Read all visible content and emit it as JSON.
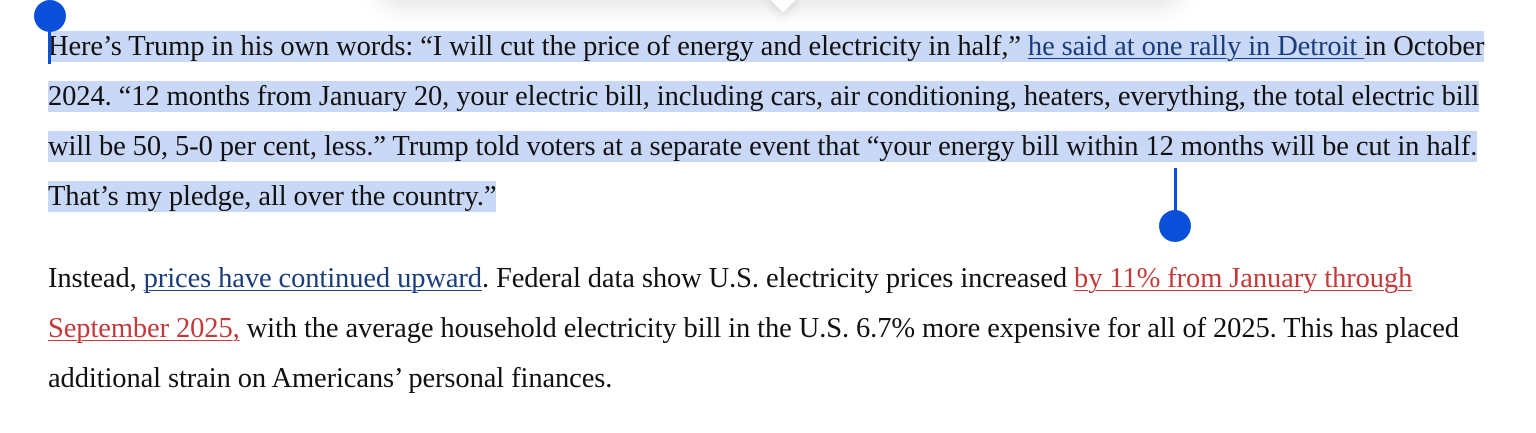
{
  "paragraph1": {
    "text_before_link": "Here’s Trump in his own words: “I will cut the price of energy and electricity in half,” ",
    "link": "he said at one rally in Detroit ",
    "text_after_link": "in October 2024. “12 months from January 20, your electric bill, including cars, air conditioning, heaters, everything, the total electric bill will be 50, 5-0 per cent, less.” Trump told voters at a separate event that “your energy bill within 12 months will be cut in half. That’s my pledge, all over the country.”"
  },
  "paragraph2": {
    "text_start": "Instead, ",
    "link1": "prices have continued upward",
    "text_mid": ". Federal data show U.S. electricity prices increased ",
    "link2": "by 11% from January through September 2025,",
    "text_end": " with the average household electricity bill in the U.S. 6.7% more expensive for all of 2025. This has placed additional strain on Americans’ personal finances."
  },
  "colors": {
    "selection": "#c9d8f7",
    "selection_handle": "#0a4fd9",
    "link": "#1a3d7c",
    "link_alt": "#c43a3a"
  }
}
